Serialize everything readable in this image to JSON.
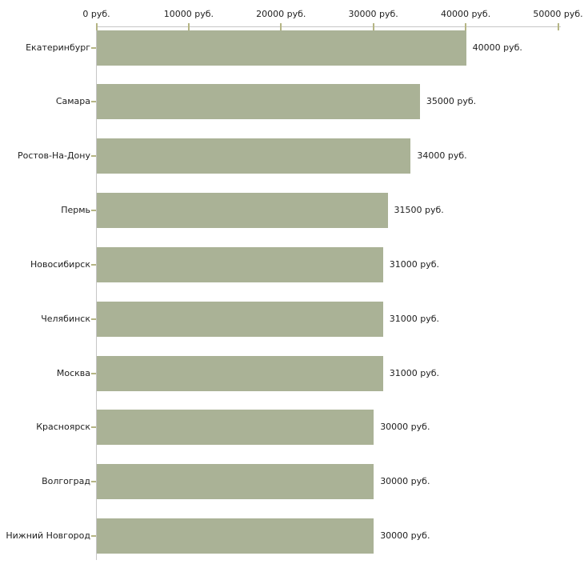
{
  "chart_data": {
    "type": "bar",
    "orientation": "horizontal",
    "title": "",
    "xlabel": "",
    "ylabel": "",
    "xlim": [
      0,
      50000
    ],
    "grid": false,
    "legend_position": "none",
    "x_tick_values": [
      0,
      10000,
      20000,
      30000,
      40000,
      50000
    ],
    "x_tick_labels": [
      "0 руб.",
      "10000 руб.",
      "20000 руб.",
      "30000 руб.",
      "40000 руб.",
      "50000 руб."
    ],
    "categories": [
      "Екатеринбург",
      "Самара",
      "Ростов-На-Дону",
      "Пермь",
      "Новосибирск",
      "Челябинск",
      "Москва",
      "Красноярск",
      "Волгоград",
      "Нижний Новгород"
    ],
    "values": [
      40000,
      35000,
      34000,
      31500,
      31000,
      31000,
      31000,
      30000,
      30000,
      30000
    ],
    "bar_labels": [
      "40000 руб.",
      "35000 руб.",
      "34000 руб.",
      "31500 руб.",
      "31000 руб.",
      "31000 руб.",
      "31000 руб.",
      "30000 руб.",
      "30000 руб.",
      "30000 руб."
    ]
  },
  "colors": {
    "bar": "#aab296",
    "axis_line": "#c6c6c6",
    "tick": "#b5b584",
    "text": "#212121",
    "background": "#ffffff"
  }
}
